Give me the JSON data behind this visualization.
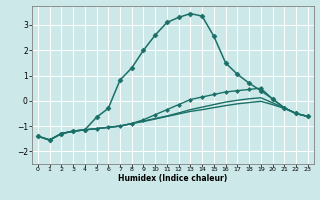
{
  "title": "",
  "xlabel": "Humidex (Indice chaleur)",
  "bg_color": "#cde8e8",
  "grid_color": "#ffffff",
  "line_color": "#1a7068",
  "xlim": [
    -0.5,
    23.5
  ],
  "ylim": [
    -2.5,
    3.75
  ],
  "xticks": [
    0,
    1,
    2,
    3,
    4,
    5,
    6,
    7,
    8,
    9,
    10,
    11,
    12,
    13,
    14,
    15,
    16,
    17,
    18,
    19,
    20,
    21,
    22,
    23
  ],
  "yticks": [
    -2,
    -1,
    0,
    1,
    2,
    3
  ],
  "series": [
    {
      "x": [
        0,
        1,
        2,
        3,
        4,
        5,
        6,
        7,
        8,
        9,
        10,
        11,
        12,
        13,
        14,
        15,
        16,
        17,
        18,
        19,
        20,
        21,
        22,
        23
      ],
      "y": [
        -1.4,
        -1.55,
        -1.3,
        -1.2,
        -1.15,
        -0.65,
        -0.3,
        0.82,
        1.3,
        2.0,
        2.6,
        3.1,
        3.3,
        3.45,
        3.35,
        2.55,
        1.5,
        1.05,
        0.7,
        0.4,
        0.08,
        -0.28,
        -0.5,
        -0.62
      ],
      "marker": "D",
      "markersize": 2.5,
      "linewidth": 1.1,
      "has_marker": true
    },
    {
      "x": [
        0,
        1,
        2,
        3,
        4,
        5,
        6,
        7,
        8,
        9,
        10,
        11,
        12,
        13,
        14,
        15,
        16,
        17,
        18,
        19,
        20,
        21,
        22,
        23
      ],
      "y": [
        -1.4,
        -1.55,
        -1.3,
        -1.2,
        -1.15,
        -1.1,
        -1.05,
        -1.0,
        -0.9,
        -0.75,
        -0.55,
        -0.35,
        -0.15,
        0.05,
        0.15,
        0.25,
        0.35,
        0.4,
        0.45,
        0.5,
        0.07,
        -0.28,
        -0.5,
        -0.62
      ],
      "marker": "D",
      "markersize": 2.0,
      "linewidth": 1.0,
      "has_marker": true
    },
    {
      "x": [
        0,
        1,
        2,
        3,
        4,
        5,
        6,
        7,
        8,
        9,
        10,
        11,
        12,
        13,
        14,
        15,
        16,
        17,
        18,
        19,
        20,
        21,
        22,
        23
      ],
      "y": [
        -1.4,
        -1.55,
        -1.3,
        -1.2,
        -1.15,
        -1.1,
        -1.05,
        -1.0,
        -0.9,
        -0.8,
        -0.7,
        -0.6,
        -0.48,
        -0.35,
        -0.25,
        -0.15,
        -0.05,
        0.02,
        0.08,
        0.12,
        -0.08,
        -0.28,
        -0.5,
        -0.62
      ],
      "marker": null,
      "markersize": 0,
      "linewidth": 1.0,
      "has_marker": false
    },
    {
      "x": [
        0,
        1,
        2,
        3,
        4,
        5,
        6,
        7,
        8,
        9,
        10,
        11,
        12,
        13,
        14,
        15,
        16,
        17,
        18,
        19,
        20,
        21,
        22,
        23
      ],
      "y": [
        -1.4,
        -1.55,
        -1.3,
        -1.2,
        -1.15,
        -1.1,
        -1.05,
        -1.0,
        -0.9,
        -0.82,
        -0.72,
        -0.62,
        -0.52,
        -0.42,
        -0.35,
        -0.27,
        -0.19,
        -0.12,
        -0.07,
        -0.02,
        -0.15,
        -0.3,
        -0.5,
        -0.62
      ],
      "marker": null,
      "markersize": 0,
      "linewidth": 1.0,
      "has_marker": false
    }
  ]
}
